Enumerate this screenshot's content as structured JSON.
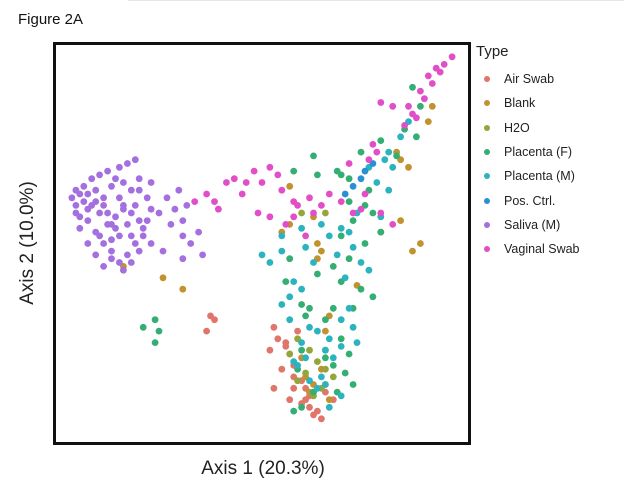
{
  "figure_label": "Figure 2A",
  "chart_data": {
    "type": "scatter",
    "xlabel": "Axis 1 (20.3%)",
    "ylabel": "Axis 2 (10.0%)",
    "xlim": [
      0,
      100
    ],
    "ylim": [
      0,
      100
    ],
    "grid": false,
    "legend_position": "right",
    "legend_title": "Type",
    "series": [
      {
        "name": "Air Swab",
        "color": "#e0766b",
        "points": [
          [
            37,
            31
          ],
          [
            36,
            27
          ],
          [
            38,
            30
          ],
          [
            53,
            28
          ],
          [
            54,
            25
          ],
          [
            56,
            23
          ],
          [
            52,
            22
          ],
          [
            59,
            27
          ],
          [
            57,
            21
          ],
          [
            58,
            18
          ],
          [
            55,
            17
          ],
          [
            58,
            15
          ],
          [
            60,
            14
          ],
          [
            61,
            12
          ],
          [
            62,
            10
          ],
          [
            60,
            8
          ],
          [
            62,
            7
          ],
          [
            64,
            6
          ],
          [
            63,
            5
          ],
          [
            65,
            4
          ],
          [
            61,
            9
          ],
          [
            66,
            11
          ],
          [
            58,
            12
          ],
          [
            57,
            9
          ],
          [
            68,
            9
          ],
          [
            56,
            24
          ],
          [
            53,
            12
          ]
        ]
      },
      {
        "name": "Blank",
        "color": "#c2922f",
        "points": [
          [
            93,
            86
          ],
          [
            92,
            82
          ],
          [
            84,
            74
          ],
          [
            85,
            72
          ],
          [
            87,
            70
          ],
          [
            57,
            65
          ],
          [
            63,
            57
          ],
          [
            64,
            50
          ],
          [
            65,
            48
          ],
          [
            64,
            46
          ],
          [
            74,
            39
          ],
          [
            88,
            48
          ],
          [
            90,
            50
          ],
          [
            85,
            56
          ],
          [
            55,
            53
          ],
          [
            67,
            31
          ],
          [
            66,
            27
          ],
          [
            66,
            22
          ],
          [
            65,
            17
          ],
          [
            66,
            13
          ],
          [
            63,
            13
          ],
          [
            61,
            15
          ],
          [
            62,
            11
          ],
          [
            67,
            9
          ],
          [
            60,
            20
          ],
          [
            30,
            38
          ],
          [
            25,
            41
          ],
          [
            15,
            44
          ],
          [
            57,
            55
          ],
          [
            80,
            53
          ]
        ]
      },
      {
        "name": "H2O",
        "color": "#94a63a",
        "points": [
          [
            60,
            58
          ],
          [
            66,
            58
          ],
          [
            62,
            22
          ],
          [
            64,
            19
          ],
          [
            61,
            16
          ],
          [
            59,
            14
          ],
          [
            66,
            17
          ],
          [
            68,
            15
          ],
          [
            65,
            12
          ],
          [
            63,
            10
          ],
          [
            57,
            21
          ],
          [
            59,
            25
          ]
        ]
      },
      {
        "name": "Placenta (F)",
        "color": "#35ae73",
        "points": [
          [
            88,
            91
          ],
          [
            90,
            86
          ],
          [
            89,
            78
          ],
          [
            86,
            80
          ],
          [
            84,
            73
          ],
          [
            80,
            77
          ],
          [
            75,
            74
          ],
          [
            72,
            67
          ],
          [
            77,
            64
          ],
          [
            69,
            69
          ],
          [
            70,
            68
          ],
          [
            63,
            73
          ],
          [
            64,
            68
          ],
          [
            72,
            61
          ],
          [
            73,
            56
          ],
          [
            76,
            60
          ],
          [
            78,
            58
          ],
          [
            80,
            53
          ],
          [
            70,
            52
          ],
          [
            76,
            50
          ],
          [
            72,
            46
          ],
          [
            68,
            44
          ],
          [
            64,
            42
          ],
          [
            60,
            34
          ],
          [
            61,
            31
          ],
          [
            56,
            40
          ],
          [
            57,
            46
          ],
          [
            70,
            40
          ],
          [
            75,
            38
          ],
          [
            78,
            36
          ],
          [
            73,
            33
          ],
          [
            68,
            33
          ],
          [
            66,
            30
          ],
          [
            62,
            33
          ],
          [
            70,
            25
          ],
          [
            72,
            21
          ],
          [
            68,
            18
          ],
          [
            66,
            20
          ],
          [
            71,
            16
          ],
          [
            73,
            13
          ],
          [
            63,
            11
          ],
          [
            69,
            11
          ],
          [
            60,
            7
          ],
          [
            58,
            6
          ],
          [
            59,
            17
          ],
          [
            60,
            22
          ],
          [
            23,
            30
          ],
          [
            24,
            27
          ],
          [
            23,
            24
          ],
          [
            20,
            28
          ],
          [
            58,
            69
          ]
        ]
      },
      {
        "name": "Placenta (M)",
        "color": "#2bb4c0",
        "points": [
          [
            87,
            82
          ],
          [
            85,
            78
          ],
          [
            82,
            74
          ],
          [
            81,
            72
          ],
          [
            83,
            70
          ],
          [
            77,
            70
          ],
          [
            79,
            66
          ],
          [
            74,
            58
          ],
          [
            72,
            53
          ],
          [
            70,
            54
          ],
          [
            65,
            55
          ],
          [
            67,
            52
          ],
          [
            60,
            54
          ],
          [
            61,
            49
          ],
          [
            55,
            52
          ],
          [
            63,
            45
          ],
          [
            58,
            40
          ],
          [
            60,
            38
          ],
          [
            57,
            36
          ],
          [
            55,
            34
          ],
          [
            62,
            28
          ],
          [
            64,
            27
          ],
          [
            67,
            25
          ],
          [
            60,
            24
          ],
          [
            66,
            22
          ],
          [
            68,
            20
          ],
          [
            70,
            30
          ],
          [
            72,
            33
          ],
          [
            73,
            28
          ],
          [
            74,
            24
          ],
          [
            70,
            23
          ],
          [
            58,
            19
          ],
          [
            61,
            20
          ],
          [
            59,
            18
          ],
          [
            62,
            14
          ],
          [
            65,
            15
          ],
          [
            64,
            12
          ],
          [
            70,
            10
          ],
          [
            67,
            7
          ],
          [
            66,
            13
          ],
          [
            75,
            45
          ],
          [
            77,
            43
          ],
          [
            71,
            41
          ],
          [
            69,
            47
          ],
          [
            80,
            57
          ],
          [
            82,
            64
          ],
          [
            55,
            48
          ],
          [
            52,
            45
          ],
          [
            50,
            47
          ],
          [
            57,
            30
          ],
          [
            73,
            49
          ]
        ]
      },
      {
        "name": "Pos. Ctrl.",
        "color": "#2b8fd6",
        "points": [
          [
            76,
            69
          ],
          [
            75,
            67
          ],
          [
            73,
            65
          ],
          [
            71,
            63
          ],
          [
            78,
            71
          ]
        ]
      },
      {
        "name": "Saliva (M)",
        "color": "#a46fdf",
        "points": [
          [
            6,
            63
          ],
          [
            8,
            64
          ],
          [
            10,
            60
          ],
          [
            12,
            65
          ],
          [
            14,
            62
          ],
          [
            15,
            59
          ],
          [
            13,
            57
          ],
          [
            11,
            55
          ],
          [
            9,
            58
          ],
          [
            7,
            60
          ],
          [
            5,
            61
          ],
          [
            4,
            63
          ],
          [
            3,
            58
          ],
          [
            6,
            56
          ],
          [
            8,
            53
          ],
          [
            10,
            50
          ],
          [
            12,
            48
          ],
          [
            14,
            52
          ],
          [
            16,
            55
          ],
          [
            17,
            58
          ],
          [
            18,
            60
          ],
          [
            19,
            56
          ],
          [
            20,
            52
          ],
          [
            18,
            50
          ],
          [
            16,
            47
          ],
          [
            14,
            45
          ],
          [
            12,
            46
          ],
          [
            10,
            44
          ],
          [
            8,
            47
          ],
          [
            6,
            50
          ],
          [
            4,
            54
          ],
          [
            3,
            60
          ],
          [
            2,
            62
          ],
          [
            5,
            65
          ],
          [
            7,
            67
          ],
          [
            9,
            68
          ],
          [
            11,
            69
          ],
          [
            13,
            67
          ],
          [
            15,
            66
          ],
          [
            17,
            64
          ],
          [
            19,
            64
          ],
          [
            21,
            62
          ],
          [
            22,
            59
          ],
          [
            21,
            56
          ],
          [
            20,
            54
          ],
          [
            19,
            48
          ],
          [
            17,
            45
          ],
          [
            15,
            43
          ],
          [
            12,
            51
          ],
          [
            13,
            54
          ],
          [
            10,
            62
          ],
          [
            8,
            61
          ],
          [
            6,
            59
          ],
          [
            4,
            57
          ],
          [
            3,
            64
          ],
          [
            11,
            58
          ],
          [
            14,
            70
          ],
          [
            16,
            71
          ],
          [
            18,
            72
          ],
          [
            19,
            67
          ],
          [
            22,
            66
          ],
          [
            27,
            55
          ],
          [
            30,
            52
          ],
          [
            32,
            50
          ],
          [
            30,
            56
          ],
          [
            28,
            59
          ],
          [
            24,
            58
          ],
          [
            26,
            62
          ],
          [
            29,
            64
          ],
          [
            31,
            60
          ],
          [
            34,
            53
          ],
          [
            35,
            47
          ],
          [
            30,
            46
          ],
          [
            25,
            48
          ],
          [
            22,
            50
          ],
          [
            17,
            52
          ],
          [
            12,
            55
          ],
          [
            9,
            52
          ],
          [
            15,
            60
          ]
        ]
      },
      {
        "name": "Vaginal Swab",
        "color": "#e24ec8",
        "points": [
          [
            98,
            99
          ],
          [
            96,
            97
          ],
          [
            95,
            95
          ],
          [
            94,
            96
          ],
          [
            92,
            94
          ],
          [
            93,
            92
          ],
          [
            90,
            90
          ],
          [
            91,
            88
          ],
          [
            87,
            86
          ],
          [
            89,
            83
          ],
          [
            86,
            81
          ],
          [
            88,
            84
          ],
          [
            80,
            87
          ],
          [
            83,
            86
          ],
          [
            78,
            76
          ],
          [
            79,
            74
          ],
          [
            77,
            72
          ],
          [
            72,
            71
          ],
          [
            76,
            63
          ],
          [
            67,
            63
          ],
          [
            62,
            62
          ],
          [
            59,
            60
          ],
          [
            58,
            61
          ],
          [
            55,
            64
          ],
          [
            54,
            68
          ],
          [
            52,
            70
          ],
          [
            50,
            66
          ],
          [
            48,
            69
          ],
          [
            46,
            66
          ],
          [
            43,
            67
          ],
          [
            45,
            63
          ],
          [
            41,
            66
          ],
          [
            39,
            59
          ],
          [
            38,
            61
          ],
          [
            36,
            63
          ],
          [
            33,
            61
          ],
          [
            49,
            58
          ],
          [
            52,
            57
          ],
          [
            56,
            55
          ],
          [
            58,
            57
          ],
          [
            61,
            52
          ],
          [
            63,
            58
          ],
          [
            65,
            60
          ],
          [
            70,
            61
          ],
          [
            73,
            58
          ],
          [
            75,
            59
          ],
          [
            80,
            58
          ],
          [
            83,
            55
          ]
        ]
      }
    ]
  }
}
